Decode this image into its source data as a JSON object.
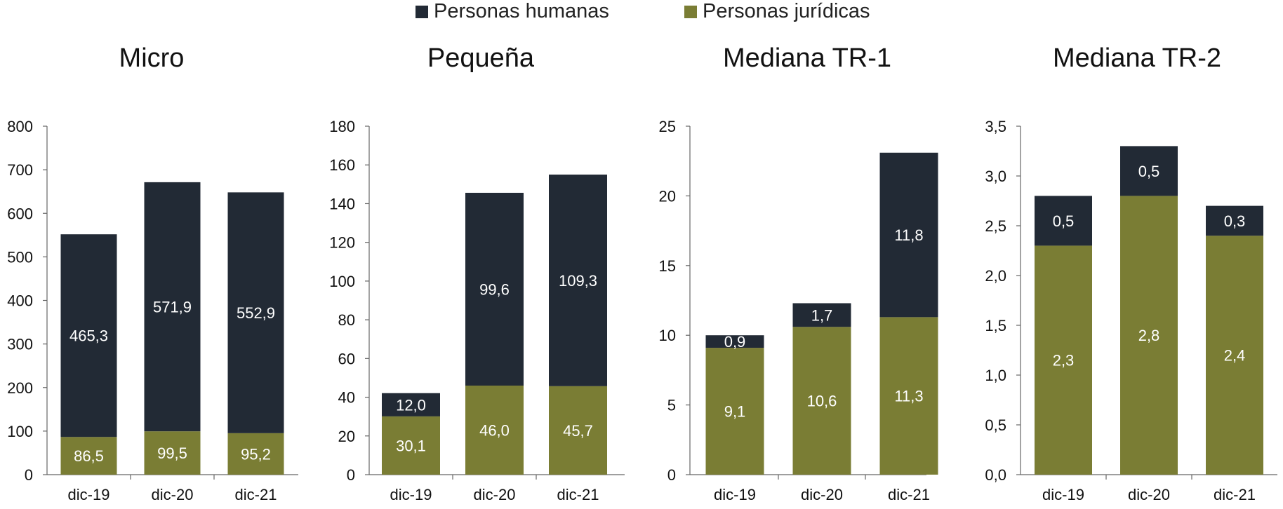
{
  "legend": {
    "items": [
      {
        "label": "Personas humanas",
        "color": "#222a35"
      },
      {
        "label": "Personas jurídicas",
        "color": "#7a7d34"
      }
    ]
  },
  "chart_data": [
    {
      "type": "bar",
      "stacked": true,
      "title": "Micro",
      "categories": [
        "dic-19",
        "dic-20",
        "dic-21"
      ],
      "series": [
        {
          "name": "Personas jurídicas",
          "values": [
            86.5,
            99.5,
            95.2
          ],
          "labels": [
            "86,5",
            "99,5",
            "95,2"
          ]
        },
        {
          "name": "Personas humanas",
          "values": [
            465.3,
            571.9,
            552.9
          ],
          "labels": [
            "465,3",
            "571,9",
            "552,9"
          ]
        }
      ],
      "ylim": [
        0,
        800
      ],
      "yticks": [
        0,
        100,
        200,
        300,
        400,
        500,
        600,
        700,
        800
      ],
      "ytick_labels": [
        "0",
        "100",
        "200",
        "300",
        "400",
        "500",
        "600",
        "700",
        "800"
      ]
    },
    {
      "type": "bar",
      "stacked": true,
      "title": "Pequeña",
      "categories": [
        "dic-19",
        "dic-20",
        "dic-21"
      ],
      "series": [
        {
          "name": "Personas jurídicas",
          "values": [
            30.1,
            46.0,
            45.7
          ],
          "labels": [
            "30,1",
            "46,0",
            "45,7"
          ]
        },
        {
          "name": "Personas humanas",
          "values": [
            12.0,
            99.6,
            109.3
          ],
          "labels": [
            "12,0",
            "99,6",
            "109,3"
          ]
        }
      ],
      "ylim": [
        0,
        180
      ],
      "yticks": [
        0,
        20,
        40,
        60,
        80,
        100,
        120,
        140,
        160,
        180
      ],
      "ytick_labels": [
        "0",
        "20",
        "40",
        "60",
        "80",
        "100",
        "120",
        "140",
        "160",
        "180"
      ]
    },
    {
      "type": "bar",
      "stacked": true,
      "title": "Mediana TR-1",
      "categories": [
        "dic-19",
        "dic-20",
        "dic-21"
      ],
      "series": [
        {
          "name": "Personas jurídicas",
          "values": [
            9.1,
            10.6,
            11.3
          ],
          "labels": [
            "9,1",
            "10,6",
            "11,3"
          ]
        },
        {
          "name": "Personas humanas",
          "values": [
            0.9,
            1.7,
            11.8
          ],
          "labels": [
            "0,9",
            "1,7",
            "11,8"
          ]
        }
      ],
      "ylim": [
        0,
        25
      ],
      "yticks": [
        0,
        5,
        10,
        15,
        20,
        25
      ],
      "ytick_labels": [
        "0",
        "5",
        "10",
        "15",
        "20",
        "25"
      ]
    },
    {
      "type": "bar",
      "stacked": true,
      "title": "Mediana TR-2",
      "categories": [
        "dic-19",
        "dic-20",
        "dic-21"
      ],
      "series": [
        {
          "name": "Personas jurídicas",
          "values": [
            2.3,
            2.8,
            2.4
          ],
          "labels": [
            "2,3",
            "2,8",
            "2,4"
          ]
        },
        {
          "name": "Personas humanas",
          "values": [
            0.5,
            0.5,
            0.3
          ],
          "labels": [
            "0,5",
            "0,5",
            "0,3"
          ]
        }
      ],
      "ylim": [
        0,
        3.5
      ],
      "yticks": [
        0,
        0.5,
        1,
        1.5,
        2,
        2.5,
        3,
        3.5
      ],
      "ytick_labels": [
        "0,0",
        "0,5",
        "1,0",
        "1,5",
        "2,0",
        "2,5",
        "3,0",
        "3,5"
      ]
    }
  ]
}
